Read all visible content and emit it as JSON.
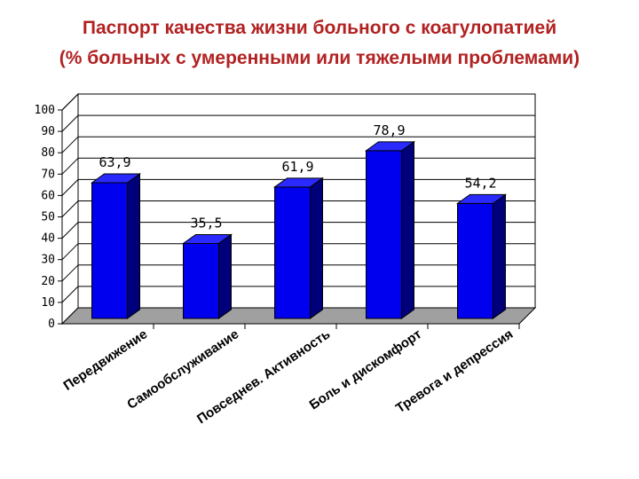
{
  "header": {
    "title_line1": "Паспорт качества жизни больного с коагулопатией",
    "title_line2": "(% больных с умеренными или тяжелыми проблемами)"
  },
  "chart_data": {
    "type": "bar",
    "categories": [
      "Передвижение",
      "Самообслуживание",
      "Повседнев. Активность",
      "Боль и дискомфорт",
      "Тревога и депрессия"
    ],
    "values": [
      63.9,
      35.5,
      61.9,
      78.9,
      54.2
    ],
    "value_labels": [
      "63,9",
      "35,5",
      "61,9",
      "78,9",
      "54,2"
    ],
    "yticks": [
      "0",
      "10",
      "20",
      "30",
      "40",
      "50",
      "60",
      "70",
      "80",
      "90",
      "100"
    ],
    "ylim": [
      0,
      100
    ],
    "grid": true,
    "bar_color": "#0000ee",
    "bar_side_color": "#00007a",
    "bar_top_color": "#2a2aff",
    "floor_color": "#a0a0a0"
  }
}
